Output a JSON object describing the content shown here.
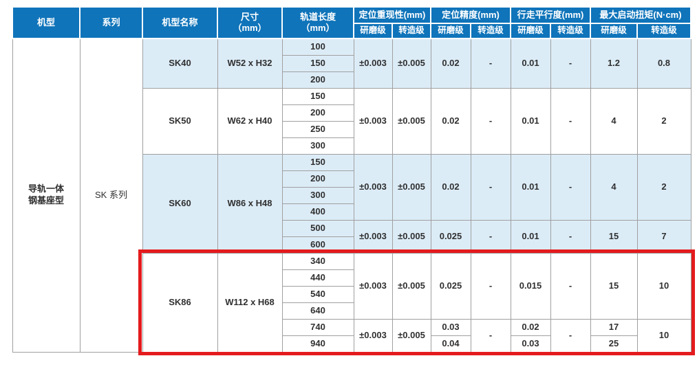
{
  "colors": {
    "header_bg": "#0f74ba",
    "tint_row_bg": "#dcecf7",
    "highlight_border": "#e41b1d",
    "grid_line": "#9f9f9f"
  },
  "header": {
    "machine_type": "机型",
    "series": "系列",
    "model_name": "机型名称",
    "dimensions": "尺寸\n（mm）",
    "rail_length": "轨道长度\n（mm）",
    "groups": [
      {
        "label": "定位重现性(mm)"
      },
      {
        "label": "定位精度(mm)"
      },
      {
        "label": "行走平行度(mm)"
      },
      {
        "label": "最大启动扭矩(N·cm)"
      }
    ],
    "sub": {
      "ground": "研磨级",
      "rolled": "转造级"
    }
  },
  "body": {
    "machine_type": "导轨一体\n钢基座型",
    "series": "SK 系列",
    "sections": [
      {
        "model": "SK40",
        "size": "W52 x H32",
        "tinted": true,
        "highlighted": false,
        "groups": [
          {
            "lengths": [
              "100",
              "150",
              "200"
            ],
            "rep_g": "±0.003",
            "rep_r": "±0.005",
            "acc_g": "0.02",
            "acc_r": "-",
            "par_g": "0.01",
            "par_r": "-",
            "tq_g": "1.2",
            "tq_r": "0.8"
          }
        ]
      },
      {
        "model": "SK50",
        "size": "W62 x H40",
        "tinted": false,
        "highlighted": false,
        "groups": [
          {
            "lengths": [
              "150",
              "200",
              "250",
              "300"
            ],
            "rep_g": "±0.003",
            "rep_r": "±0.005",
            "acc_g": "0.02",
            "acc_r": "-",
            "par_g": "0.01",
            "par_r": "-",
            "tq_g": "4",
            "tq_r": "2"
          }
        ]
      },
      {
        "model": "SK60",
        "size": "W86 x H48",
        "tinted": true,
        "highlighted": false,
        "groups": [
          {
            "lengths": [
              "150",
              "200",
              "300",
              "400"
            ],
            "rep_g": "±0.003",
            "rep_r": "±0.005",
            "acc_g": "0.02",
            "acc_r": "-",
            "par_g": "0.01",
            "par_r": "-",
            "tq_g": "4",
            "tq_r": "2"
          },
          {
            "lengths": [
              "500",
              "600"
            ],
            "rep_g": "±0.003",
            "rep_r": "±0.005",
            "acc_g": "0.025",
            "acc_r": "-",
            "par_g": "0.01",
            "par_r": "-",
            "tq_g": "15",
            "tq_r": "7"
          }
        ]
      },
      {
        "model": "SK86",
        "size": "W112 x H68",
        "tinted": false,
        "highlighted": true,
        "groups": [
          {
            "lengths": [
              "340",
              "440",
              "540",
              "640"
            ],
            "rep_g": "±0.003",
            "rep_r": "±0.005",
            "acc_g": "0.025",
            "acc_r": "-",
            "par_g": "0.015",
            "par_r": "-",
            "tq_g": "15",
            "tq_r": "10"
          },
          {
            "lengths": [
              "740",
              "940"
            ],
            "rep_g": "±0.003",
            "rep_r": "±0.005",
            "acc_g_rows": [
              "0.03",
              "0.04"
            ],
            "acc_r": "-",
            "par_g_rows": [
              "0.02",
              "0.03"
            ],
            "par_r": "-",
            "tq_g_rows": [
              "17",
              "25"
            ],
            "tq_r": "10"
          }
        ]
      }
    ]
  }
}
